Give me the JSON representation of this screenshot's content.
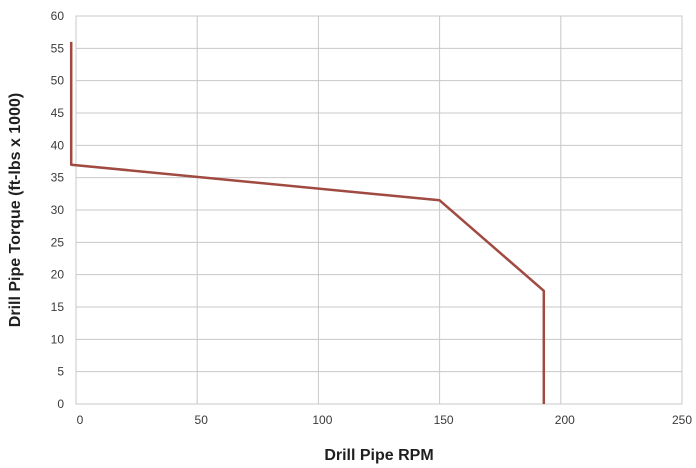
{
  "chart_data": {
    "type": "line",
    "title": "",
    "xlabel": "Drill Pipe RPM",
    "ylabel": "Drill Pipe Torque (ft-lbs x 1000)",
    "xlim": [
      0,
      250
    ],
    "ylim": [
      0,
      60
    ],
    "xticks": [
      "0",
      "50",
      "100",
      "150",
      "200",
      "250"
    ],
    "yticks": [
      "0",
      "5",
      "10",
      "15",
      "20",
      "25",
      "30",
      "35",
      "40",
      "45",
      "50",
      "55",
      "60"
    ],
    "grid": true,
    "series": [
      {
        "color": "#a04a42",
        "points": [
          {
            "x": -2,
            "y": 56
          },
          {
            "x": -2,
            "y": 37
          },
          {
            "x": 150,
            "y": 31.5
          },
          {
            "x": 193,
            "y": 17.5
          },
          {
            "x": 193,
            "y": 0
          }
        ]
      }
    ]
  }
}
